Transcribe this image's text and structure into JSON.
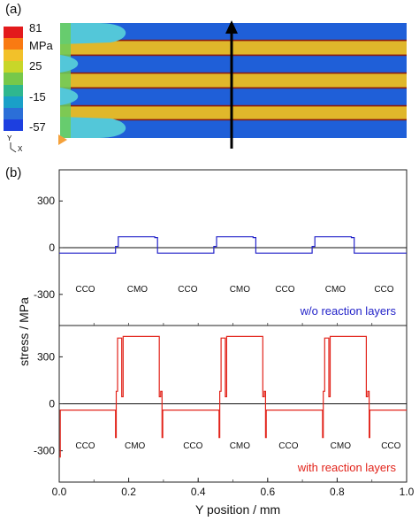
{
  "figure": {
    "panel_a_label": "(a)",
    "panel_b_label": "(b)",
    "colorbar": {
      "labels": [
        "81",
        "MPa",
        "25",
        "-15",
        "-57"
      ],
      "colors": [
        "#e31a1c",
        "#f97a12",
        "#f2c12a",
        "#c8d629",
        "#77c84a",
        "#2fb78f",
        "#1aa0c8",
        "#2b6fd8",
        "#1d3fe0"
      ]
    },
    "axis_glyph": {
      "y": "Y",
      "x": "X"
    },
    "contour_colors": {
      "bulk": "#1f5fd8",
      "layer": "#e0b72b",
      "edge": "#8a1a10",
      "cyan": "#53c7d9",
      "green": "#6bcd5a"
    }
  },
  "chart_data": {
    "type": "line",
    "xlabel": "Y position / mm",
    "ylabel": "stress / MPa",
    "x_ticks": [
      "0.0",
      "0.2",
      "0.4",
      "0.6",
      "0.8",
      "1.0"
    ],
    "xlim": [
      0,
      1
    ],
    "grid": false,
    "subplots": [
      {
        "annotation": "w/o reaction layers",
        "color": "#2323c9",
        "ylim": [
          -500,
          500
        ],
        "y_ticks": [
          "300",
          "0",
          "-300"
        ],
        "phase_labels": [
          "CCO",
          "CMO",
          "CCO",
          "CMO",
          "CCO",
          "CMO",
          "CCO"
        ],
        "phase_x": [
          0.075,
          0.225,
          0.37,
          0.52,
          0.65,
          0.795,
          0.935
        ],
        "phase_y": -285,
        "series": [
          {
            "x": [
              0,
              0.162,
              0.162,
              0.17,
              0.17,
              0.275,
              0.275,
              0.283,
              0.283,
              0.445,
              0.445,
              0.453,
              0.453,
              0.558,
              0.558,
              0.566,
              0.566,
              0.728,
              0.728,
              0.736,
              0.736,
              0.841,
              0.841,
              0.849,
              0.849,
              1.0
            ],
            "y": [
              -35,
              -35,
              8,
              8,
              70,
              70,
              65,
              65,
              -35,
              -35,
              8,
              8,
              70,
              70,
              65,
              65,
              -35,
              -35,
              8,
              8,
              70,
              70,
              65,
              65,
              -35,
              -35
            ]
          }
        ]
      },
      {
        "annotation": "with reaction layers",
        "color": "#e2231a",
        "ylim": [
          -500,
          500
        ],
        "y_ticks": [
          "300",
          "0",
          "-300"
        ],
        "phase_labels": [
          "CCO",
          "CMO",
          "CCO",
          "CMO",
          "CCO",
          "CMO",
          "CCO"
        ],
        "phase_x": [
          0.075,
          0.218,
          0.385,
          0.52,
          0.66,
          0.81,
          0.955
        ],
        "phase_y": -285,
        "series": [
          {
            "x": [
              0,
              0.003,
              0.003,
              0.162,
              0.162,
              0.164,
              0.164,
              0.168,
              0.168,
              0.18,
              0.18,
              0.184,
              0.184,
              0.288,
              0.288,
              0.292,
              0.292,
              0.296,
              0.296,
              0.298,
              0.298,
              0.46,
              0.46,
              0.462,
              0.462,
              0.466,
              0.466,
              0.478,
              0.478,
              0.482,
              0.482,
              0.586,
              0.586,
              0.59,
              0.59,
              0.594,
              0.594,
              0.596,
              0.596,
              0.758,
              0.758,
              0.76,
              0.76,
              0.764,
              0.764,
              0.776,
              0.776,
              0.78,
              0.78,
              0.884,
              0.884,
              0.888,
              0.888,
              0.892,
              0.892,
              0.894,
              0.894,
              1.0
            ],
            "y": [
              -340,
              -340,
              -40,
              -40,
              -215,
              -215,
              80,
              80,
              420,
              420,
              45,
              45,
              430,
              430,
              45,
              45,
              80,
              80,
              -215,
              -215,
              -40,
              -40,
              -215,
              -215,
              80,
              80,
              420,
              420,
              45,
              45,
              430,
              430,
              45,
              45,
              80,
              80,
              -215,
              -215,
              -40,
              -40,
              -215,
              -215,
              80,
              80,
              420,
              420,
              45,
              45,
              430,
              430,
              45,
              45,
              80,
              80,
              -215,
              -215,
              -40,
              -40
            ]
          }
        ]
      }
    ]
  }
}
